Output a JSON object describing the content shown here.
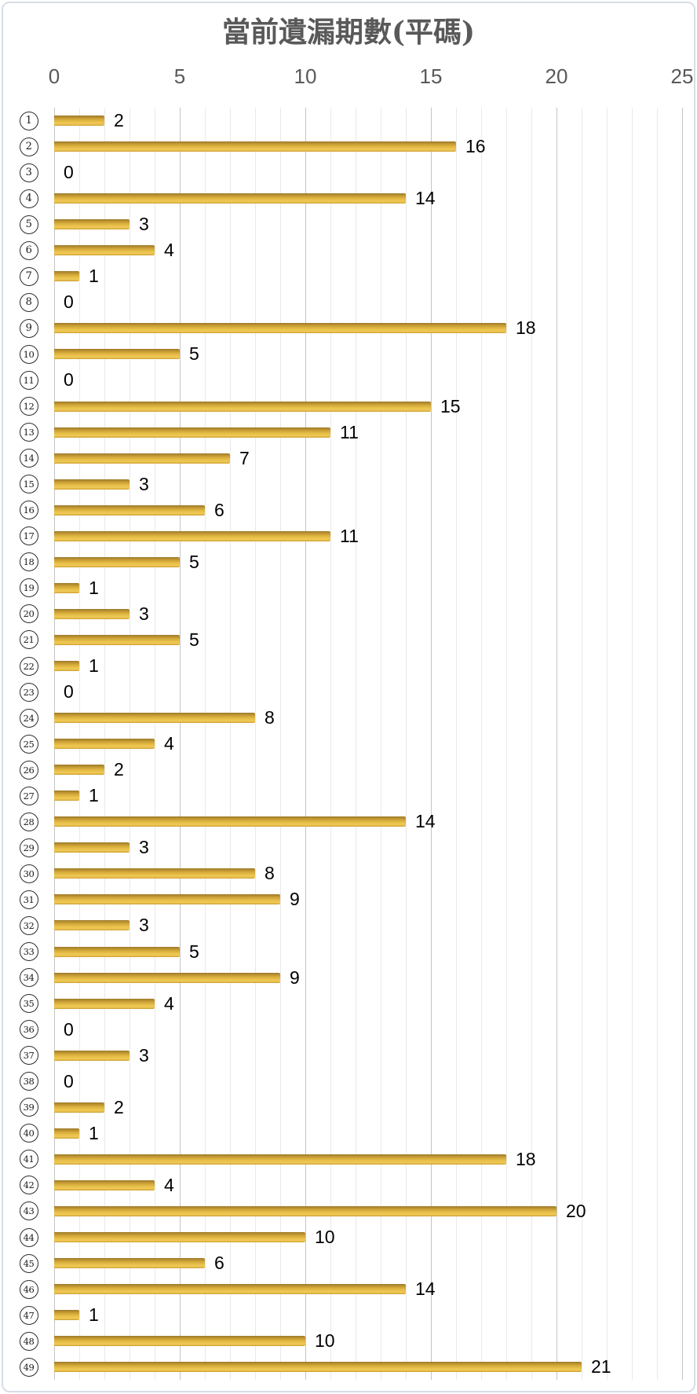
{
  "frame": {
    "border_color": "#d6dde6",
    "background": "#ffffff"
  },
  "chart_data": {
    "type": "bar",
    "orientation": "horizontal",
    "title": "當前遺漏期數(平碼)",
    "title_color": "#595959",
    "categories": [
      "1",
      "2",
      "3",
      "4",
      "5",
      "6",
      "7",
      "8",
      "9",
      "10",
      "11",
      "12",
      "13",
      "14",
      "15",
      "16",
      "17",
      "18",
      "19",
      "20",
      "21",
      "22",
      "23",
      "24",
      "25",
      "26",
      "27",
      "28",
      "29",
      "30",
      "31",
      "32",
      "33",
      "34",
      "35",
      "36",
      "37",
      "38",
      "39",
      "40",
      "41",
      "42",
      "43",
      "44",
      "45",
      "46",
      "47",
      "48",
      "49"
    ],
    "category_style": "circled-number",
    "values": [
      2,
      16,
      0,
      14,
      3,
      4,
      1,
      0,
      18,
      5,
      0,
      15,
      11,
      7,
      3,
      6,
      11,
      5,
      1,
      3,
      5,
      1,
      0,
      8,
      4,
      2,
      1,
      14,
      3,
      8,
      9,
      3,
      5,
      9,
      4,
      0,
      3,
      0,
      2,
      1,
      18,
      4,
      20,
      10,
      6,
      14,
      1,
      10,
      21
    ],
    "xlim": [
      0,
      25
    ],
    "x_ticks": [
      0,
      5,
      10,
      15,
      20,
      25
    ],
    "x_tick_color": "#595959",
    "grid": "vertical minor lines every 1 unit, major lines every 5 units",
    "grid_minor_color": "#e9e9e9",
    "grid_major_color": "#c4c4c4",
    "bar_color": "#e2b33c",
    "value_labels": "at end of each bar",
    "value_label_color": "#000000",
    "legend": "none"
  }
}
